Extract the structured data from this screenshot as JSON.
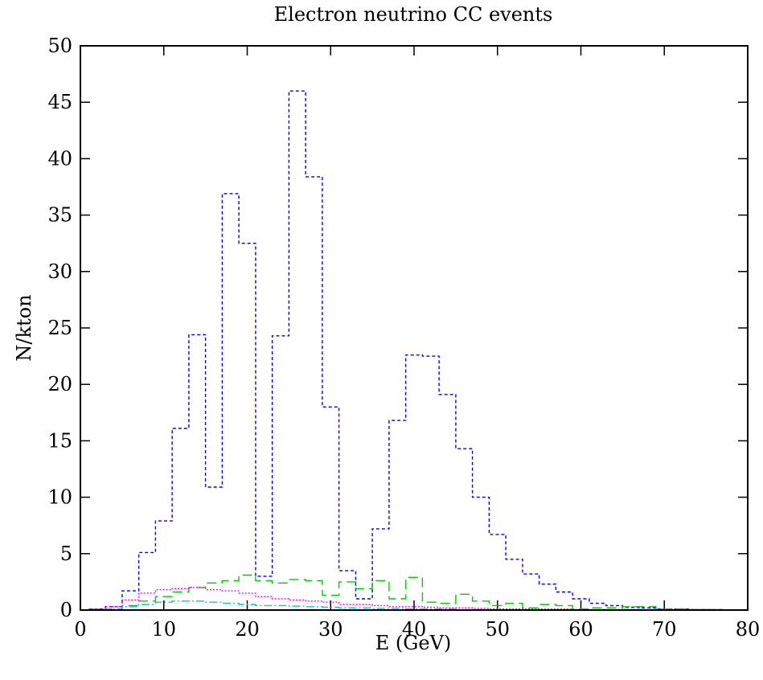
{
  "chart_data": {
    "type": "line",
    "style": "step-histogram",
    "title": "Electron neutrino CC events",
    "xlabel": "E (GeV)",
    "ylabel": "N/kton",
    "xlim": [
      0,
      80
    ],
    "ylim": [
      0,
      50
    ],
    "xticks": [
      0,
      10,
      20,
      30,
      40,
      50,
      60,
      70,
      80
    ],
    "yticks": [
      0,
      5,
      10,
      15,
      20,
      25,
      30,
      35,
      40,
      45,
      50
    ],
    "grid": false,
    "legend": "none",
    "bin_width": 2,
    "x_bin_edges_start": [
      1,
      3,
      5,
      7,
      9,
      11,
      13,
      15,
      17,
      19,
      21,
      23,
      25,
      27,
      29,
      31,
      33,
      35,
      37,
      39,
      41,
      43,
      45,
      47,
      49,
      51,
      53,
      55,
      57,
      59,
      61,
      63,
      65,
      67,
      69,
      71,
      73,
      75
    ],
    "series": [
      {
        "color": "#0000ff",
        "dash": "4,3",
        "values": [
          0.1,
          0.3,
          1.7,
          5.1,
          7.9,
          16.1,
          24.4,
          10.9,
          36.9,
          32.5,
          3.0,
          24.3,
          46.0,
          38.4,
          18.0,
          3.5,
          1.0,
          7.2,
          16.8,
          22.6,
          22.5,
          19.1,
          14.3,
          10.0,
          6.7,
          4.5,
          3.2,
          2.3,
          1.6,
          1.0,
          0.6,
          0.4,
          0.25,
          0.2,
          0.1,
          0.1,
          0.05,
          0.05
        ]
      },
      {
        "color": "#00cc00",
        "dash": "12,6",
        "values": [
          0.05,
          0.1,
          0.4,
          0.8,
          1.2,
          1.6,
          2.0,
          2.4,
          2.6,
          3.1,
          2.6,
          2.4,
          2.7,
          2.6,
          1.3,
          2.5,
          1.9,
          2.6,
          1.0,
          2.9,
          0.7,
          0.6,
          1.4,
          0.8,
          0.4,
          0.6,
          0.2,
          0.5,
          0.4,
          0.1,
          0.2,
          0.2,
          0.3,
          0.3,
          0.1,
          0.1,
          0.05,
          0.05
        ]
      },
      {
        "color": "#ff00ff",
        "dash": "2,2",
        "values": [
          0.1,
          0.3,
          0.9,
          1.5,
          1.8,
          1.9,
          2.0,
          1.8,
          1.7,
          1.5,
          1.2,
          1.0,
          0.9,
          0.8,
          0.7,
          0.5,
          0.5,
          0.4,
          0.3,
          0.3,
          0.25,
          0.2,
          0.2,
          0.15,
          0.1,
          0.1,
          0.1,
          0.1,
          0.1,
          0.05,
          0.05,
          0.05,
          0.05,
          0.05,
          0.05,
          0.05,
          0.05,
          0.05
        ]
      },
      {
        "color": "#00cccc",
        "dash": "10,3,2,3",
        "values": [
          0.05,
          0.1,
          0.3,
          0.5,
          0.7,
          0.8,
          0.8,
          0.7,
          0.6,
          0.5,
          0.4,
          0.4,
          0.35,
          0.3,
          0.25,
          0.2,
          0.2,
          0.15,
          0.15,
          0.1,
          0.1,
          0.1,
          0.05,
          0.05,
          0.05,
          0.05,
          0.05,
          0.05,
          0.05,
          0.05,
          0.05,
          0.05,
          0.05,
          0.05,
          0.05,
          0.05,
          0.05,
          0.05
        ]
      }
    ]
  }
}
